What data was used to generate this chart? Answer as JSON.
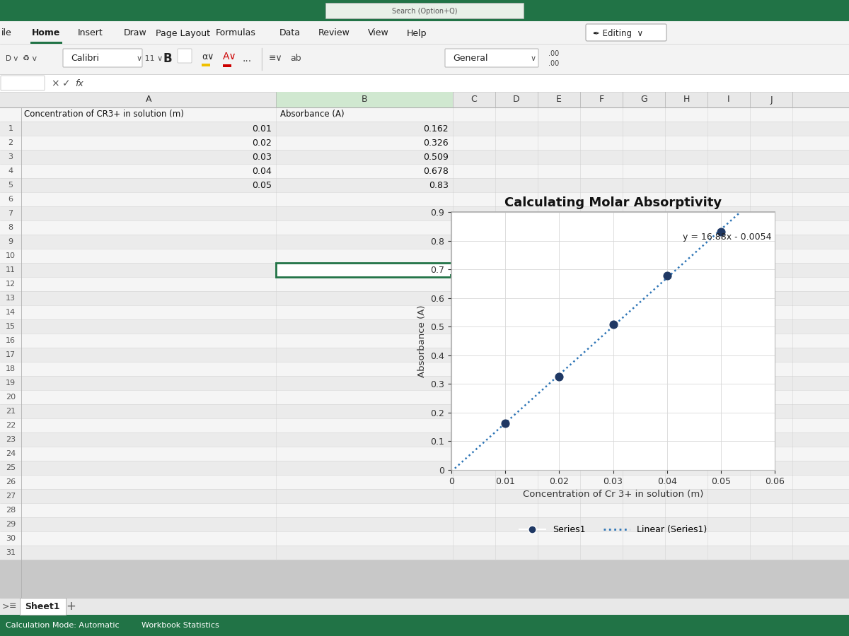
{
  "title": "Calculating Molar Absorptivity",
  "xlabel": "Concentration of Cr 3+ in solution (m)",
  "ylabel": "Absorbance (A)",
  "x_data": [
    0.01,
    0.02,
    0.03,
    0.04,
    0.05
  ],
  "y_data": [
    0.162,
    0.326,
    0.509,
    0.678,
    0.83
  ],
  "slope": 16.88,
  "intercept": -0.0054,
  "equation": "y = 16.88x - 0.0054",
  "xlim": [
    0,
    0.06
  ],
  "ylim": [
    0,
    0.9
  ],
  "x_ticks": [
    0,
    0.01,
    0.02,
    0.03,
    0.04,
    0.05,
    0.06
  ],
  "y_ticks": [
    0,
    0.1,
    0.2,
    0.3,
    0.4,
    0.5,
    0.6,
    0.7,
    0.8,
    0.9
  ],
  "series_color": "#1f3864",
  "line_color": "#2e75b6",
  "legend_series": "Series1",
  "legend_linear": "Linear (Series1)",
  "col_a_header": "Concentration of CR3+ in solution (m)",
  "col_b_header": "Absorbance (A)",
  "sheet_tab": "Sheet1",
  "status_left": "Calculation Mode: Automatic",
  "status_right": "Workbook Statistics",
  "ribbon_tabs": [
    "ile",
    "Home",
    "Insert",
    "Draw",
    "Page Layout",
    "Formulas",
    "Data",
    "Review",
    "View",
    "Help"
  ],
  "ribbon_tab_bold": "Home",
  "toolbar2_items": [
    "Calibri",
    "11",
    "B"
  ],
  "formula_bar": "X  ✓  fx",
  "general_label": "General",
  "editing_label": "✒ Editing  ∨",
  "col_headers": [
    "A",
    "B",
    "C",
    "D",
    "E",
    "F",
    "G",
    "H",
    "I",
    "J"
  ],
  "row_numbers": [
    "",
    "3",
    "4",
    "5",
    "6",
    "7",
    "8",
    "9",
    "0",
    "1",
    "2",
    "3",
    "4",
    "5",
    "6",
    "7",
    "8",
    "9"
  ],
  "bg_top_bar": "#217346",
  "bg_ribbon": "#f3f3f3",
  "bg_toolbar": "#f3f3f3",
  "bg_formula": "#ffffff",
  "bg_col_header": "#e8e8e8",
  "bg_row_even": "#f5f5f5",
  "bg_row_odd": "#ebebeb",
  "cell_line_color": "#d4d4d4",
  "chart_border_color": "#aaaaaa",
  "selected_cell_color": "#217346"
}
